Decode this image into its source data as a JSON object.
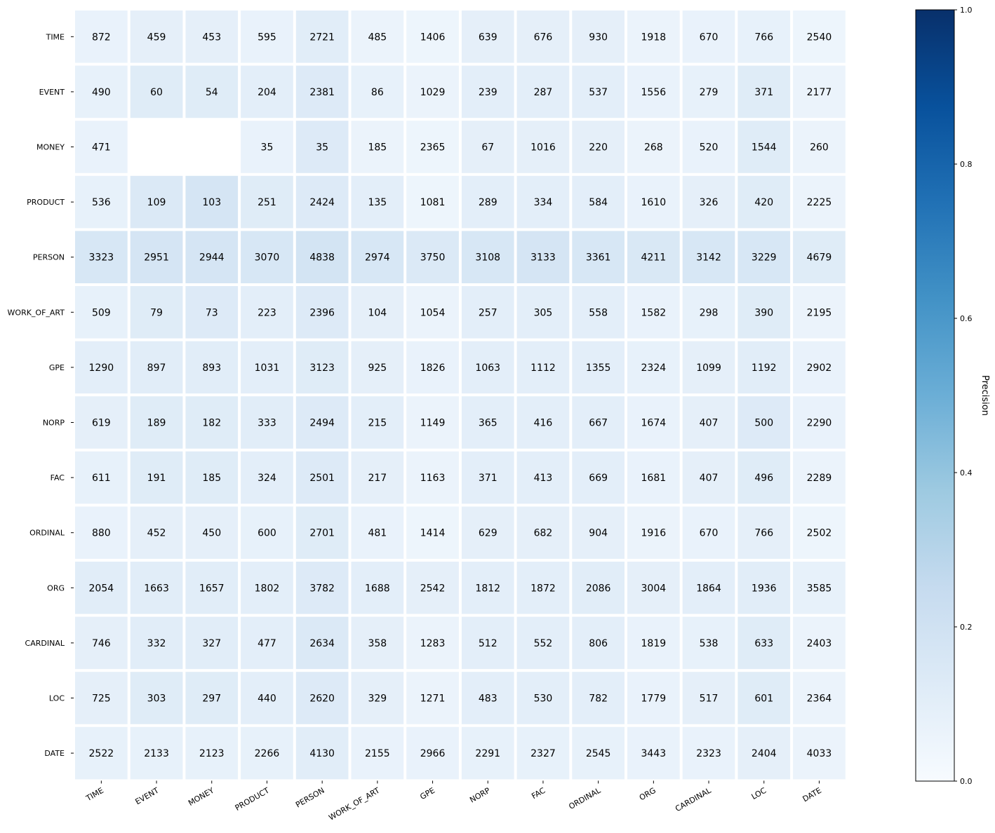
{
  "chart_data": {
    "type": "heatmap",
    "rows": [
      "TIME",
      "EVENT",
      "MONEY",
      "PRODUCT",
      "PERSON",
      "WORK_OF_ART",
      "GPE",
      "NORP",
      "FAC",
      "ORDINAL",
      "ORG",
      "CARDINAL",
      "LOC",
      "DATE"
    ],
    "columns": [
      "TIME",
      "EVENT",
      "MONEY",
      "PRODUCT",
      "PERSON",
      "WORK_OF_ART",
      "GPE",
      "NORP",
      "FAC",
      "ORDINAL",
      "ORG",
      "CARDINAL",
      "LOC",
      "DATE"
    ],
    "values": [
      [
        872,
        459,
        453,
        595,
        2721,
        485,
        1406,
        639,
        676,
        930,
        1918,
        670,
        766,
        2540
      ],
      [
        490,
        60,
        54,
        204,
        2381,
        86,
        1029,
        239,
        287,
        537,
        1556,
        279,
        371,
        2177
      ],
      [
        471,
        null,
        null,
        35,
        35,
        185,
        2365,
        67,
        1016,
        220,
        268,
        520,
        1544,
        260
      ],
      [
        536,
        109,
        103,
        251,
        2424,
        135,
        1081,
        289,
        334,
        584,
        1610,
        326,
        420,
        2225
      ],
      [
        3323,
        2951,
        2944,
        3070,
        4838,
        2974,
        3750,
        3108,
        3133,
        3361,
        4211,
        3142,
        3229,
        4679
      ],
      [
        509,
        79,
        73,
        223,
        2396,
        104,
        1054,
        257,
        305,
        558,
        1582,
        298,
        390,
        2195
      ],
      [
        1290,
        897,
        893,
        1031,
        3123,
        925,
        1826,
        1063,
        1112,
        1355,
        2324,
        1099,
        1192,
        2902
      ],
      [
        619,
        189,
        182,
        333,
        2494,
        215,
        1149,
        365,
        416,
        667,
        1674,
        407,
        500,
        2290
      ],
      [
        611,
        191,
        185,
        324,
        2501,
        217,
        1163,
        371,
        413,
        669,
        1681,
        407,
        496,
        2289
      ],
      [
        880,
        452,
        450,
        600,
        2701,
        481,
        1414,
        629,
        682,
        904,
        1916,
        670,
        766,
        2502
      ],
      [
        2054,
        1663,
        1657,
        1802,
        3782,
        1688,
        2542,
        1812,
        1872,
        2086,
        3004,
        1864,
        1936,
        3585
      ],
      [
        746,
        332,
        327,
        477,
        2634,
        358,
        1283,
        512,
        552,
        806,
        1819,
        538,
        633,
        2403
      ],
      [
        725,
        303,
        297,
        440,
        2620,
        329,
        1271,
        483,
        530,
        782,
        1779,
        517,
        601,
        2364
      ],
      [
        2522,
        2133,
        2123,
        2266,
        4130,
        2155,
        2966,
        2291,
        2327,
        2545,
        3443,
        2323,
        2404,
        4033
      ]
    ],
    "precision": [
      [
        0.07,
        0.09,
        0.09,
        0.07,
        0.11,
        0.06,
        0.05,
        0.09,
        0.09,
        0.09,
        0.06,
        0.07,
        0.08,
        0.05
      ],
      [
        0.08,
        0.12,
        0.12,
        0.1,
        0.13,
        0.08,
        0.06,
        0.1,
        0.1,
        0.1,
        0.07,
        0.08,
        0.12,
        0.06
      ],
      [
        0.07,
        null,
        null,
        0.07,
        0.13,
        0.06,
        0.05,
        0.09,
        0.09,
        0.09,
        0.06,
        0.07,
        0.12,
        0.06
      ],
      [
        0.08,
        0.14,
        0.17,
        0.12,
        0.13,
        0.1,
        0.05,
        0.1,
        0.1,
        0.1,
        0.07,
        0.09,
        0.12,
        0.06
      ],
      [
        0.16,
        0.17,
        0.17,
        0.16,
        0.18,
        0.16,
        0.14,
        0.16,
        0.17,
        0.16,
        0.15,
        0.16,
        0.16,
        0.12
      ],
      [
        0.08,
        0.12,
        0.13,
        0.1,
        0.13,
        0.09,
        0.06,
        0.1,
        0.1,
        0.1,
        0.07,
        0.08,
        0.12,
        0.06
      ],
      [
        0.1,
        0.11,
        0.11,
        0.1,
        0.12,
        0.09,
        0.07,
        0.1,
        0.1,
        0.1,
        0.08,
        0.09,
        0.11,
        0.07
      ],
      [
        0.09,
        0.12,
        0.12,
        0.11,
        0.13,
        0.1,
        0.06,
        0.1,
        0.1,
        0.1,
        0.07,
        0.09,
        0.13,
        0.07
      ],
      [
        0.08,
        0.12,
        0.12,
        0.1,
        0.13,
        0.09,
        0.06,
        0.1,
        0.1,
        0.1,
        0.07,
        0.09,
        0.12,
        0.06
      ],
      [
        0.07,
        0.09,
        0.09,
        0.08,
        0.12,
        0.07,
        0.05,
        0.09,
        0.09,
        0.09,
        0.06,
        0.07,
        0.09,
        0.05
      ],
      [
        0.11,
        0.11,
        0.11,
        0.1,
        0.13,
        0.1,
        0.09,
        0.1,
        0.1,
        0.11,
        0.09,
        0.1,
        0.11,
        0.08
      ],
      [
        0.09,
        0.11,
        0.11,
        0.1,
        0.14,
        0.09,
        0.06,
        0.1,
        0.1,
        0.1,
        0.07,
        0.08,
        0.12,
        0.06
      ],
      [
        0.09,
        0.12,
        0.12,
        0.1,
        0.13,
        0.09,
        0.06,
        0.1,
        0.1,
        0.1,
        0.07,
        0.09,
        0.12,
        0.06
      ],
      [
        0.08,
        0.08,
        0.08,
        0.08,
        0.11,
        0.07,
        0.07,
        0.08,
        0.08,
        0.08,
        0.07,
        0.07,
        0.09,
        0.06
      ]
    ],
    "colorbar": {
      "label": "Precision",
      "range": [
        0.0,
        1.0
      ],
      "ticks": [
        "0.0",
        "0.2",
        "0.4",
        "0.6",
        "0.8",
        "1.0"
      ],
      "colormap": "Blues",
      "low_color": "#f7fbff",
      "high_color": "#08306b"
    },
    "grid": false,
    "cell_border_color": "#ffffff",
    "text_color": "#000000"
  }
}
